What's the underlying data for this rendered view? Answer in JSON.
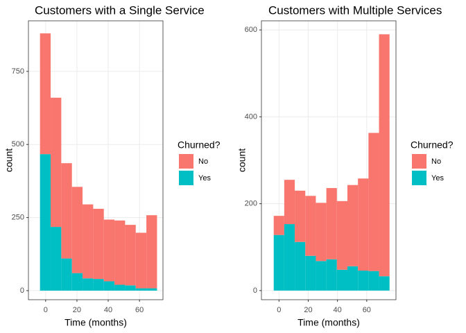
{
  "chart_data": [
    {
      "type": "histogram",
      "title": "Customers with a Single Service",
      "x_label": "Time (months)",
      "y_label": "count",
      "legend_title": "Churned?",
      "bins": [
        -3.6,
        3.2,
        10.0,
        16.8,
        23.6,
        30.4,
        37.2,
        44.0,
        50.8,
        57.6,
        64.4,
        71.2
      ],
      "series": [
        {
          "name": "No",
          "color": "#F8766D",
          "values": [
            413,
            442,
            326,
            295,
            253,
            240,
            211,
            220,
            207,
            190,
            250
          ]
        },
        {
          "name": "Yes",
          "color": "#00BFC4",
          "values": [
            467,
            218,
            110,
            60,
            42,
            40,
            32,
            20,
            18,
            8,
            8
          ]
        }
      ],
      "xlim": [
        -11,
        75
      ],
      "xticks": [
        0,
        20,
        40,
        60
      ],
      "ylim": [
        -31,
        923
      ],
      "yticks": [
        0,
        250,
        500,
        750
      ],
      "grid": true
    },
    {
      "type": "histogram",
      "title": "Customers with Multiple Services",
      "x_label": "Time (months)",
      "y_label": "count",
      "legend_title": "Churned?",
      "bins": [
        -3.6,
        3.6,
        10.8,
        18.0,
        25.2,
        32.4,
        39.6,
        46.8,
        54.0,
        61.2,
        68.4,
        75.6
      ],
      "series": [
        {
          "name": "No",
          "color": "#F8766D",
          "values": [
            44,
            102,
            118,
            138,
            134,
            164,
            158,
            187,
            212,
            318,
            557
          ]
        },
        {
          "name": "Yes",
          "color": "#00BFC4",
          "values": [
            128,
            153,
            112,
            80,
            68,
            72,
            48,
            56,
            46,
            45,
            33
          ]
        }
      ],
      "xlim": [
        -12,
        80
      ],
      "xticks": [
        0,
        20,
        40,
        60
      ],
      "ylim": [
        -21,
        621
      ],
      "yticks": [
        0,
        200,
        400,
        600
      ],
      "grid": true
    }
  ]
}
